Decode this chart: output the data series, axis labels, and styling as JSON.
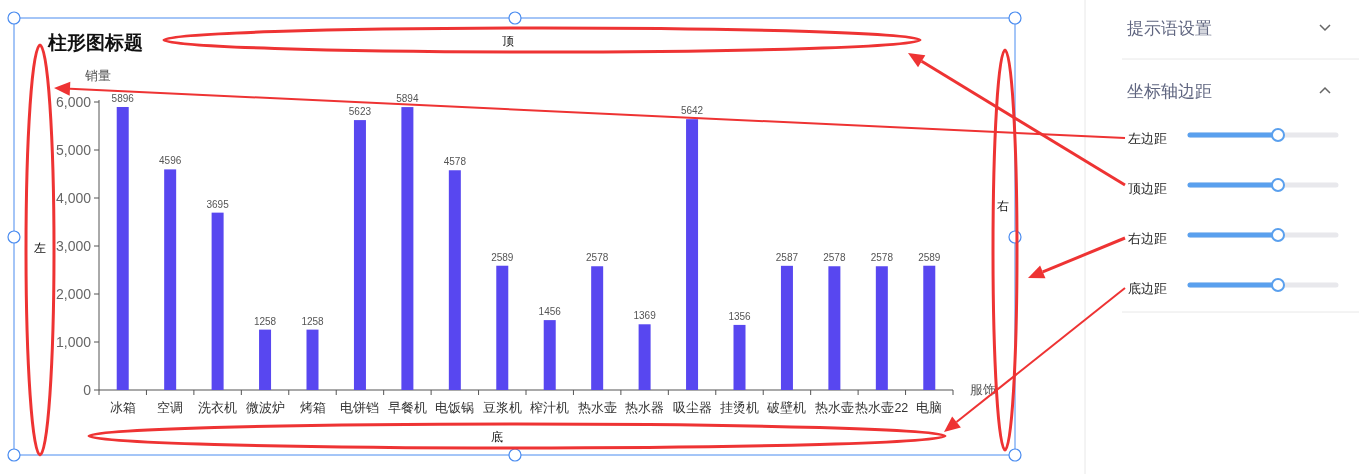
{
  "chart_data": {
    "type": "bar",
    "title": "柱形图标题",
    "ylabel": "销量",
    "xlabel": "服饰",
    "categories": [
      "冰箱",
      "空调",
      "洗衣机",
      "微波炉",
      "烤箱",
      "电饼铛",
      "早餐机",
      "电饭锅",
      "豆浆机",
      "榨汁机",
      "热水壶",
      "热水器",
      "吸尘器",
      "挂烫机",
      "破壁机",
      "热水壶",
      "热水壶22",
      "电脑"
    ],
    "values": [
      5896,
      4596,
      3695,
      1258,
      1258,
      5623,
      5894,
      4578,
      2589,
      1456,
      2578,
      1369,
      5642,
      1356,
      2587,
      2578,
      2578,
      2589
    ],
    "color": "#5847f0",
    "data_labels": true,
    "grid": false,
    "ylim": [
      0,
      6000
    ],
    "yticks": [
      0,
      {
        "value": 1000,
        "label": "1,000"
      },
      {
        "value": 2000,
        "label": "2,000"
      },
      {
        "value": 3000,
        "label": "3,000"
      },
      {
        "value": 4000,
        "label": "4,000"
      },
      {
        "value": 5000,
        "label": "5,000"
      },
      {
        "value": 6000,
        "label": "6,000"
      }
    ],
    "annotations": [
      "顶",
      "底",
      "左",
      "右",
      "提示语设置",
      "坐标轴边距",
      "左边距",
      "顶边距",
      "右边距",
      "底边距"
    ]
  }
}
